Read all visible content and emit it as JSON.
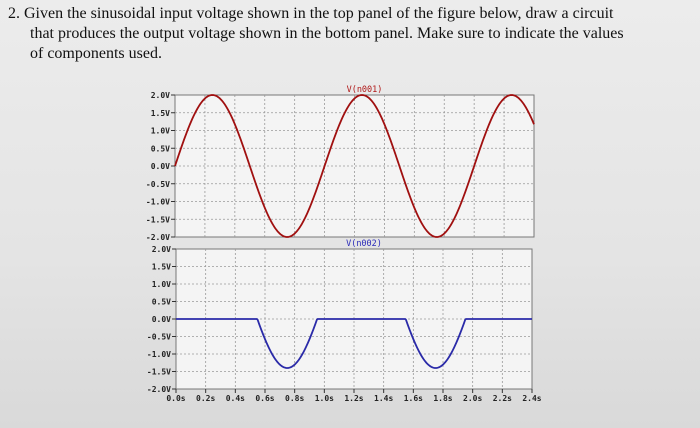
{
  "question": {
    "number": "2.",
    "lines": [
      "Given the sinusoidal input voltage shown in the top panel of the figure below, draw a circuit",
      "that produces the output voltage shown in the bottom panel. Make sure to indicate the values",
      "of components used."
    ]
  },
  "chart_data": [
    {
      "type": "line",
      "title": "V(n001)",
      "title_color": "#b01818",
      "series": [
        {
          "name": "V(n001)",
          "color": "#a01010",
          "function": "2*sin(2*pi*1*t)",
          "amplitude_v": 2.0,
          "frequency_hz": 1.0
        }
      ],
      "xlim": [
        0,
        2.4
      ],
      "ylim": [
        -2.0,
        2.0
      ],
      "yticks": [
        "2.0V",
        "1.5V",
        "1.0V",
        "0.5V",
        "0.0V",
        "-0.5V",
        "-1.0V",
        "-1.5V",
        "-2.0V"
      ],
      "grid": true
    },
    {
      "type": "line",
      "title": "V(n002)",
      "title_color": "#2a2ab8",
      "series": [
        {
          "name": "V(n002)",
          "color": "#2a2aa8",
          "function": "min(0, 2*sin(2*pi*t)+0.6)",
          "amplitude_v": 2.0,
          "frequency_hz": 1.0,
          "clip_threshold_v": -0.6,
          "min_v": -1.4
        }
      ],
      "xlim": [
        0,
        2.4
      ],
      "ylim": [
        -2.0,
        2.0
      ],
      "xticks": [
        "0.0s",
        "0.2s",
        "0.4s",
        "0.6s",
        "0.8s",
        "1.0s",
        "1.2s",
        "1.4s",
        "1.6s",
        "1.8s",
        "2.0s",
        "2.2s",
        "2.4s"
      ],
      "yticks": [
        "2.0V",
        "1.5V",
        "1.0V",
        "0.5V",
        "0.0V",
        "-0.5V",
        "-1.0V",
        "-1.5V",
        "-2.0V"
      ],
      "grid": true
    }
  ]
}
